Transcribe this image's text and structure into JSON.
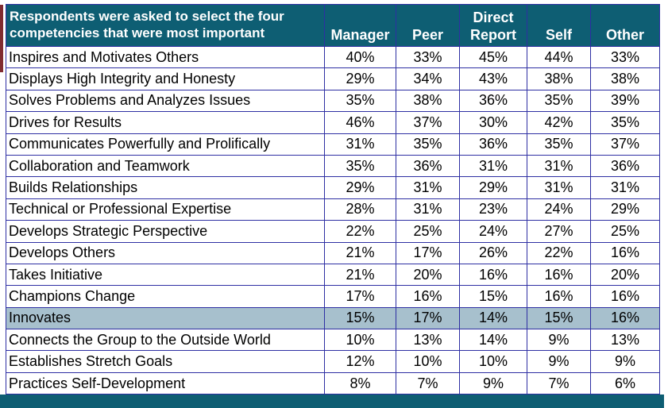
{
  "table": {
    "prompt": "Respondents were asked to select the four competencies that were most important",
    "columns": [
      {
        "label": "Manager"
      },
      {
        "label": "Peer"
      },
      {
        "label": "Direct Report"
      },
      {
        "label": "Self"
      },
      {
        "label": "Other"
      }
    ],
    "rows": [
      {
        "label": "Inspires and Motivates Others",
        "values": [
          "40%",
          "33%",
          "45%",
          "44%",
          "33%"
        ],
        "highlighted": false
      },
      {
        "label": "Displays High Integrity and Honesty",
        "values": [
          "29%",
          "34%",
          "43%",
          "38%",
          "38%"
        ],
        "highlighted": false
      },
      {
        "label": "Solves Problems and Analyzes Issues",
        "values": [
          "35%",
          "38%",
          "36%",
          "35%",
          "39%"
        ],
        "highlighted": false
      },
      {
        "label": "Drives for Results",
        "values": [
          "46%",
          "37%",
          "30%",
          "42%",
          "35%"
        ],
        "highlighted": false
      },
      {
        "label": "Communicates Powerfully and Prolifically",
        "values": [
          "31%",
          "35%",
          "36%",
          "35%",
          "37%"
        ],
        "highlighted": false
      },
      {
        "label": "Collaboration and Teamwork",
        "values": [
          "35%",
          "36%",
          "31%",
          "31%",
          "36%"
        ],
        "highlighted": false
      },
      {
        "label": "Builds Relationships",
        "values": [
          "29%",
          "31%",
          "29%",
          "31%",
          "31%"
        ],
        "highlighted": false
      },
      {
        "label": "Technical or Professional Expertise",
        "values": [
          "28%",
          "31%",
          "23%",
          "24%",
          "29%"
        ],
        "highlighted": false
      },
      {
        "label": "Develops Strategic Perspective",
        "values": [
          "22%",
          "25%",
          "24%",
          "27%",
          "25%"
        ],
        "highlighted": false
      },
      {
        "label": "Develops Others",
        "values": [
          "21%",
          "17%",
          "26%",
          "22%",
          "16%"
        ],
        "highlighted": false
      },
      {
        "label": "Takes Initiative",
        "values": [
          "21%",
          "20%",
          "16%",
          "16%",
          "20%"
        ],
        "highlighted": false
      },
      {
        "label": "Champions Change",
        "values": [
          "17%",
          "16%",
          "15%",
          "16%",
          "16%"
        ],
        "highlighted": false
      },
      {
        "label": "Innovates",
        "values": [
          "15%",
          "17%",
          "14%",
          "15%",
          "16%"
        ],
        "highlighted": true
      },
      {
        "label": "Connects the Group to the Outside World",
        "values": [
          "10%",
          "13%",
          "14%",
          "9%",
          "13%"
        ],
        "highlighted": false
      },
      {
        "label": "Establishes Stretch Goals",
        "values": [
          "12%",
          "10%",
          "10%",
          "9%",
          "9%"
        ],
        "highlighted": false
      },
      {
        "label": "Practices Self-Development",
        "values": [
          "8%",
          "7%",
          "9%",
          "7%",
          "6%"
        ],
        "highlighted": false
      }
    ]
  },
  "colors": {
    "header_bg": "#0e5e73",
    "highlight_bg": "#a7c0cd",
    "border": "#2e2fa3",
    "accent_bar": "#0e5e73",
    "left_stripe": "#802b30",
    "body_text": "#000000",
    "header_text": "#ffffff"
  },
  "chart_data": {
    "type": "table",
    "title": "Respondents were asked to select the four competencies that were most important",
    "unit": "%",
    "categories": [
      "Inspires and Motivates Others",
      "Displays High Integrity and Honesty",
      "Solves Problems and Analyzes Issues",
      "Drives for Results",
      "Communicates Powerfully and Prolifically",
      "Collaboration and Teamwork",
      "Builds Relationships",
      "Technical or Professional Expertise",
      "Develops Strategic Perspective",
      "Develops Others",
      "Takes Initiative",
      "Champions Change",
      "Innovates",
      "Connects the Group to the Outside World",
      "Establishes Stretch Goals",
      "Practices Self-Development"
    ],
    "series": [
      {
        "name": "Manager",
        "values": [
          40,
          29,
          35,
          46,
          31,
          35,
          29,
          28,
          22,
          21,
          21,
          17,
          15,
          10,
          12,
          8
        ]
      },
      {
        "name": "Peer",
        "values": [
          33,
          34,
          38,
          37,
          35,
          36,
          31,
          31,
          25,
          17,
          20,
          16,
          17,
          13,
          10,
          7
        ]
      },
      {
        "name": "Direct Report",
        "values": [
          45,
          43,
          36,
          30,
          36,
          31,
          29,
          23,
          24,
          26,
          16,
          15,
          14,
          14,
          10,
          9
        ]
      },
      {
        "name": "Self",
        "values": [
          44,
          38,
          35,
          42,
          35,
          31,
          31,
          24,
          27,
          22,
          16,
          16,
          15,
          9,
          9,
          7
        ]
      },
      {
        "name": "Other",
        "values": [
          33,
          38,
          39,
          35,
          37,
          36,
          31,
          29,
          25,
          16,
          20,
          16,
          16,
          13,
          9,
          6
        ]
      }
    ],
    "highlighted_row": "Innovates"
  }
}
